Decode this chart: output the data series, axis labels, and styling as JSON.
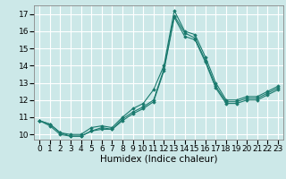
{
  "title": "",
  "xlabel": "Humidex (Indice chaleur)",
  "ylabel": "",
  "xlim": [
    -0.5,
    23.5
  ],
  "ylim": [
    9.7,
    17.5
  ],
  "background_color": "#cce8e8",
  "grid_color": "#ffffff",
  "line_color": "#1a7a6e",
  "series": [
    {
      "x": [
        0,
        1,
        2,
        3,
        4,
        5,
        6,
        7,
        8,
        9,
        10,
        11,
        12,
        13,
        14,
        15,
        16,
        17,
        18,
        19,
        20,
        21,
        22,
        23
      ],
      "y": [
        10.8,
        10.6,
        10.1,
        10.0,
        10.0,
        10.4,
        10.5,
        10.4,
        11.0,
        11.5,
        11.8,
        12.6,
        14.0,
        17.2,
        16.0,
        15.8,
        14.5,
        13.0,
        12.0,
        12.0,
        12.2,
        12.2,
        12.5,
        12.8
      ]
    },
    {
      "x": [
        0,
        1,
        2,
        3,
        4,
        5,
        6,
        7,
        8,
        9,
        10,
        11,
        12,
        13,
        14,
        15,
        16,
        17,
        18,
        19,
        20,
        21,
        22,
        23
      ],
      "y": [
        10.8,
        10.6,
        10.1,
        9.9,
        9.9,
        10.2,
        10.4,
        10.3,
        10.9,
        11.3,
        11.6,
        12.0,
        13.8,
        16.9,
        15.9,
        15.6,
        14.3,
        12.8,
        11.9,
        11.9,
        12.1,
        12.1,
        12.4,
        12.7
      ]
    },
    {
      "x": [
        0,
        1,
        2,
        3,
        4,
        5,
        6,
        7,
        8,
        9,
        10,
        11,
        12,
        13,
        14,
        15,
        16,
        17,
        18,
        19,
        20,
        21,
        22,
        23
      ],
      "y": [
        10.8,
        10.5,
        10.0,
        9.9,
        9.9,
        10.2,
        10.3,
        10.3,
        10.8,
        11.2,
        11.5,
        11.9,
        13.7,
        16.8,
        15.7,
        15.5,
        14.2,
        12.7,
        11.8,
        11.8,
        12.0,
        12.0,
        12.3,
        12.6
      ]
    }
  ],
  "yticks": [
    10,
    11,
    12,
    13,
    14,
    15,
    16,
    17
  ],
  "xticks": [
    0,
    1,
    2,
    3,
    4,
    5,
    6,
    7,
    8,
    9,
    10,
    11,
    12,
    13,
    14,
    15,
    16,
    17,
    18,
    19,
    20,
    21,
    22,
    23
  ],
  "tick_fontsize": 6.5,
  "label_fontsize": 7.5
}
